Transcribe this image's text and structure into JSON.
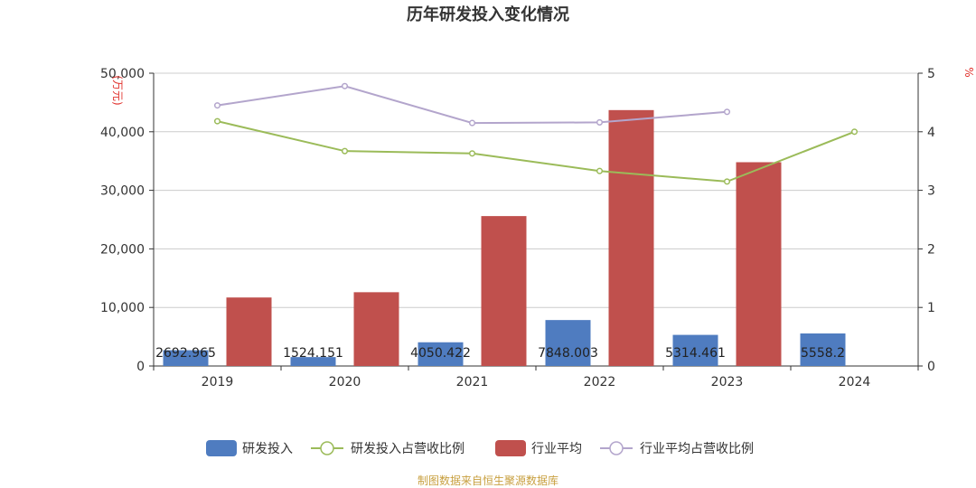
{
  "chart_data": {
    "type": "bar",
    "title": "历年研发投入变化情况",
    "categories": [
      "2019",
      "2020",
      "2021",
      "2022",
      "2023",
      "2024"
    ],
    "y_left": {
      "unit": "(万元)",
      "min": 0,
      "max": 50000,
      "ticks": [
        "0",
        "10,000",
        "20,000",
        "30,000",
        "40,000",
        "50,000"
      ]
    },
    "y_right": {
      "unit": "%",
      "min": 0,
      "max": 5,
      "ticks": [
        "0",
        "1",
        "2",
        "3",
        "4",
        "5"
      ]
    },
    "grid": true,
    "legend_position": "bottom",
    "series": [
      {
        "name": "研发投入",
        "kind": "bar",
        "axis": "left",
        "color": "#4f7cc0",
        "values": [
          2692.965,
          1524.151,
          4050.422,
          7848.003,
          5314.461,
          5558.2
        ],
        "labels": [
          "2692.965",
          "1524.151",
          "4050.422",
          "7848.003",
          "5314.461",
          "5558.2"
        ]
      },
      {
        "name": "研发投入占营收比例",
        "kind": "line",
        "axis": "right",
        "color": "#9bbb59",
        "values": [
          4.18,
          3.67,
          3.63,
          3.33,
          3.15,
          4.0
        ]
      },
      {
        "name": "行业平均",
        "kind": "bar",
        "axis": "left",
        "color": "#c0504d",
        "values": [
          11700,
          12600,
          25600,
          43700,
          34800,
          null
        ]
      },
      {
        "name": "行业平均占营收比例",
        "kind": "line",
        "axis": "right",
        "color": "#b3a5cc",
        "values": [
          4.45,
          4.78,
          4.15,
          4.16,
          4.34,
          null
        ]
      }
    ],
    "axis_color": "#333333",
    "grid_color": "#cccccc",
    "unit_color": "#e0302b"
  },
  "source": {
    "text": "制图数据来自恒生聚源数据库",
    "color": "#c8a040"
  }
}
